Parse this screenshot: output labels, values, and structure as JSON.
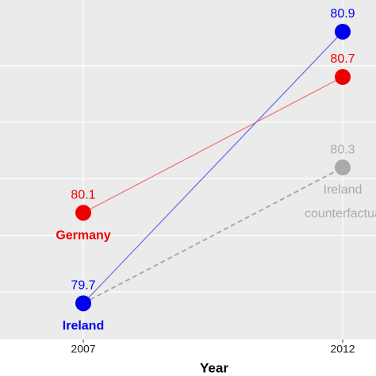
{
  "chart_data": {
    "type": "line",
    "x_label": "Year",
    "categories": [
      "2007",
      "2012"
    ],
    "series": [
      {
        "name": "Ireland counterfactual",
        "color": "#aaaaaa",
        "dashed": true,
        "values": [
          79.7,
          80.3
        ]
      },
      {
        "name": "Germany",
        "color": "#ee0000",
        "values": [
          80.1,
          80.7
        ]
      },
      {
        "name": "Ireland",
        "color": "#0000ee",
        "values": [
          79.7,
          80.9
        ]
      }
    ],
    "ylim": [
      79.54,
      81.04
    ],
    "yticks": [
      79.75,
      80.0,
      80.25,
      80.5,
      80.75
    ],
    "grid": true
  }
}
